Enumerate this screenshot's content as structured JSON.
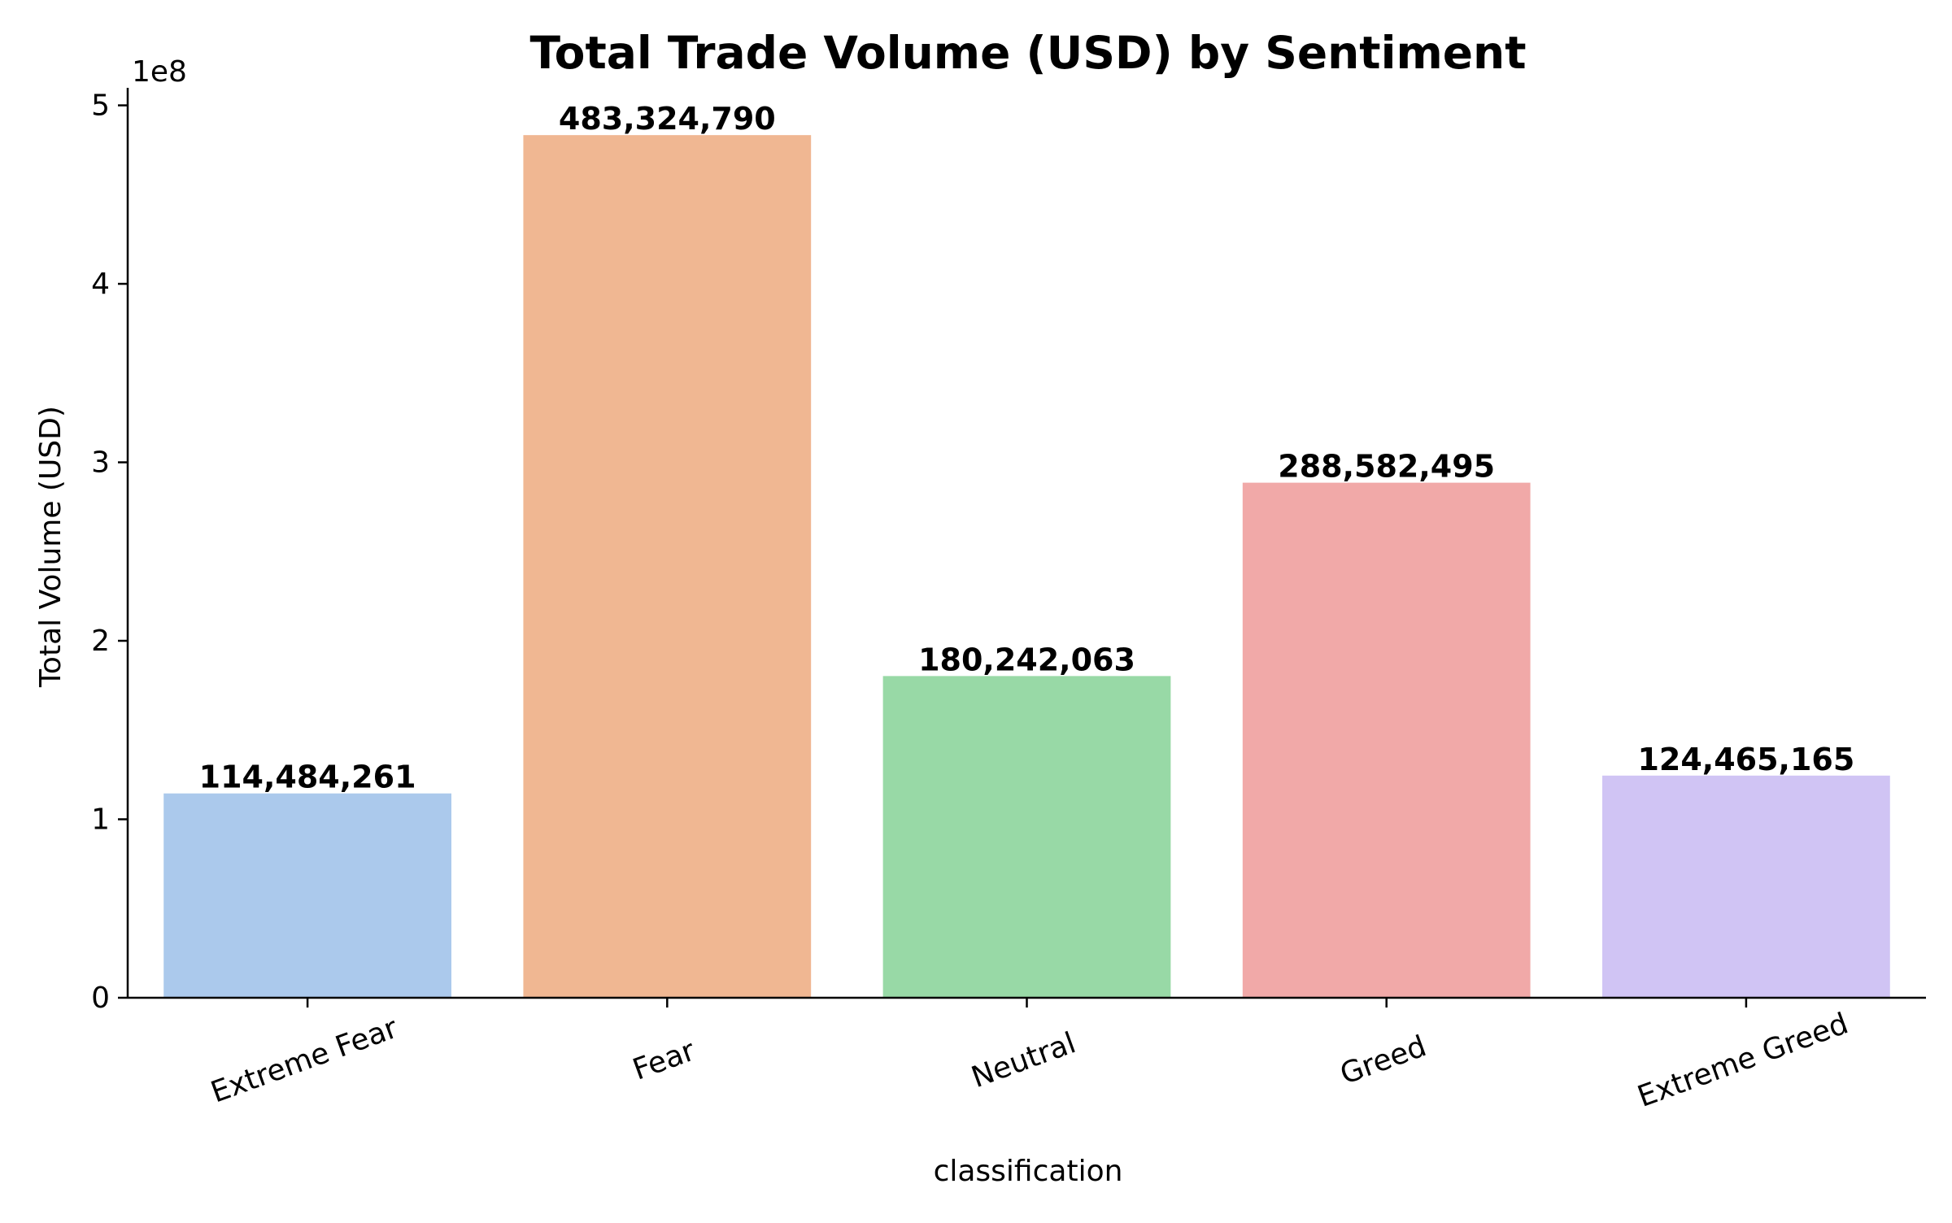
{
  "chart_data": {
    "type": "bar",
    "title": "Total Trade Volume (USD) by Sentiment",
    "xlabel": "classification",
    "ylabel": "Total Volume (USD)",
    "y_offset_label": "1e8",
    "categories": [
      "Extreme Fear",
      "Fear",
      "Neutral",
      "Greed",
      "Extreme Greed"
    ],
    "values": [
      114484261,
      483324790,
      180242063,
      288582495,
      124465165
    ],
    "value_labels": [
      "114,484,261",
      "483,324,790",
      "180,242,063",
      "288,582,495",
      "124,465,165"
    ],
    "colors": [
      "#abc9ec",
      "#f0b792",
      "#98d9a6",
      "#f1a9a8",
      "#d0c4f4"
    ],
    "ylim": [
      0,
      508000000
    ],
    "yticks": [
      0,
      100000000,
      200000000,
      300000000,
      400000000,
      500000000
    ],
    "ytick_labels": [
      "0",
      "1",
      "2",
      "3",
      "4",
      "5"
    ],
    "grid": false,
    "legend": "none"
  }
}
